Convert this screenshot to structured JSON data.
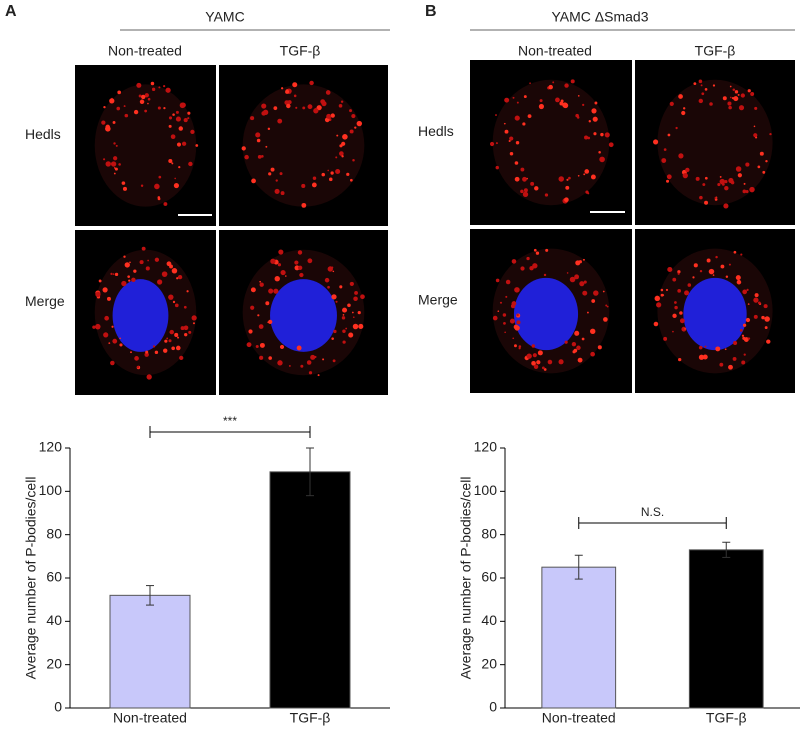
{
  "chart_data": [
    {
      "type": "bar",
      "panel": "A",
      "cell_line": "YAMC",
      "image_columns": [
        "Non-treated",
        "TGF-β"
      ],
      "image_rows": [
        "Hedls",
        "Merge"
      ],
      "ylabel": "Average number of P-bodies/cell",
      "categories": [
        "Non-treated",
        "TGF-β"
      ],
      "values": [
        52,
        109
      ],
      "errors": [
        4.5,
        11
      ],
      "colors": [
        "#c8c8fa",
        "#000000"
      ],
      "significance": "***",
      "ylim": [
        0,
        120
      ],
      "yticks": [
        0,
        20,
        40,
        60,
        80,
        100,
        120
      ]
    },
    {
      "type": "bar",
      "panel": "B",
      "cell_line": "YAMC ΔSmad3",
      "image_columns": [
        "Non-treated",
        "TGF-β"
      ],
      "image_rows": [
        "Hedls",
        "Merge"
      ],
      "ylabel": "Average number of P-bodies/cell",
      "categories": [
        "Non-treated",
        "TGF-β"
      ],
      "values": [
        65,
        73
      ],
      "errors": [
        5.5,
        3.5
      ],
      "colors": [
        "#c8c8fa",
        "#000000"
      ],
      "significance": "N.S.",
      "ylim": [
        0,
        120
      ],
      "yticks": [
        0,
        20,
        40,
        60,
        80,
        100,
        120
      ]
    }
  ]
}
